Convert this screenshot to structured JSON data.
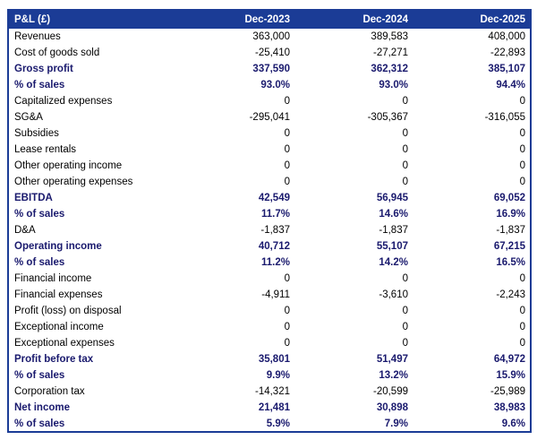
{
  "colors": {
    "header_bg": "#1B3C96",
    "header_text": "#FFFFFF",
    "emphasis_text": "#1A1A6E",
    "body_text": "#000000",
    "border": "#1B3C96",
    "page_bg": "#FFFFFF"
  },
  "chart_data": {
    "type": "table",
    "title": "P&L (£)",
    "columns": [
      "Dec-2023",
      "Dec-2024",
      "Dec-2025"
    ],
    "rows": [
      {
        "label": "Revenues",
        "bold": false,
        "values": [
          "363,000",
          "389,583",
          "408,000"
        ]
      },
      {
        "label": "Cost of goods sold",
        "bold": false,
        "values": [
          "-25,410",
          "-27,271",
          "-22,893"
        ]
      },
      {
        "label": "Gross profit",
        "bold": true,
        "values": [
          "337,590",
          "362,312",
          "385,107"
        ]
      },
      {
        "label": "% of sales",
        "bold": true,
        "values": [
          "93.0%",
          "93.0%",
          "94.4%"
        ]
      },
      {
        "label": "Capitalized expenses",
        "bold": false,
        "values": [
          "0",
          "0",
          "0"
        ]
      },
      {
        "label": "SG&A",
        "bold": false,
        "values": [
          "-295,041",
          "-305,367",
          "-316,055"
        ]
      },
      {
        "label": "Subsidies",
        "bold": false,
        "values": [
          "0",
          "0",
          "0"
        ]
      },
      {
        "label": "Lease rentals",
        "bold": false,
        "values": [
          "0",
          "0",
          "0"
        ]
      },
      {
        "label": "Other operating income",
        "bold": false,
        "values": [
          "0",
          "0",
          "0"
        ]
      },
      {
        "label": "Other operating expenses",
        "bold": false,
        "values": [
          "0",
          "0",
          "0"
        ]
      },
      {
        "label": "EBITDA",
        "bold": true,
        "values": [
          "42,549",
          "56,945",
          "69,052"
        ]
      },
      {
        "label": "% of sales",
        "bold": true,
        "values": [
          "11.7%",
          "14.6%",
          "16.9%"
        ]
      },
      {
        "label": "D&A",
        "bold": false,
        "values": [
          "-1,837",
          "-1,837",
          "-1,837"
        ]
      },
      {
        "label": "Operating income",
        "bold": true,
        "values": [
          "40,712",
          "55,107",
          "67,215"
        ]
      },
      {
        "label": "% of sales",
        "bold": true,
        "values": [
          "11.2%",
          "14.2%",
          "16.5%"
        ]
      },
      {
        "label": "Financial income",
        "bold": false,
        "values": [
          "0",
          "0",
          "0"
        ]
      },
      {
        "label": "Financial expenses",
        "bold": false,
        "values": [
          "-4,911",
          "-3,610",
          "-2,243"
        ]
      },
      {
        "label": "Profit (loss) on disposal",
        "bold": false,
        "values": [
          "0",
          "0",
          "0"
        ]
      },
      {
        "label": "Exceptional income",
        "bold": false,
        "values": [
          "0",
          "0",
          "0"
        ]
      },
      {
        "label": "Exceptional expenses",
        "bold": false,
        "values": [
          "0",
          "0",
          "0"
        ]
      },
      {
        "label": "Profit before tax",
        "bold": true,
        "values": [
          "35,801",
          "51,497",
          "64,972"
        ]
      },
      {
        "label": "% of sales",
        "bold": true,
        "values": [
          "9.9%",
          "13.2%",
          "15.9%"
        ]
      },
      {
        "label": "Corporation tax",
        "bold": false,
        "values": [
          "-14,321",
          "-20,599",
          "-25,989"
        ]
      },
      {
        "label": "Net income",
        "bold": true,
        "values": [
          "21,481",
          "30,898",
          "38,983"
        ]
      },
      {
        "label": "% of sales",
        "bold": true,
        "values": [
          "5.9%",
          "7.9%",
          "9.6%"
        ]
      }
    ]
  }
}
